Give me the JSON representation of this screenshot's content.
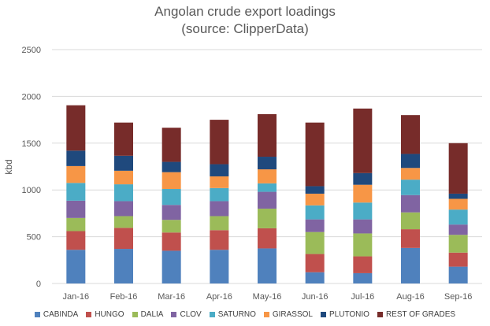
{
  "chart_data": {
    "type": "bar",
    "stacked": true,
    "title": "Angolan crude export loadings",
    "subtitle": "(source: ClipperData)",
    "xlabel": "",
    "ylabel": "kbd",
    "ylim": [
      0,
      2500
    ],
    "yticks": [
      0,
      500,
      1000,
      1500,
      2000,
      2500
    ],
    "grid": true,
    "legend_position": "bottom",
    "categories": [
      "Jan-16",
      "Feb-16",
      "Mar-16",
      "Apr-16",
      "May-16",
      "Jun-16",
      "Jul-16",
      "Aug-16",
      "Sep-16"
    ],
    "series": [
      {
        "name": "CABINDA",
        "color": "#4f81bd",
        "values": [
          360,
          370,
          350,
          360,
          375,
          120,
          110,
          380,
          180
        ]
      },
      {
        "name": "HUNGO",
        "color": "#c0504d",
        "values": [
          200,
          225,
          195,
          210,
          215,
          195,
          180,
          200,
          150
        ]
      },
      {
        "name": "DALIA",
        "color": "#9bbb59",
        "values": [
          140,
          125,
          135,
          150,
          210,
          235,
          245,
          180,
          190
        ]
      },
      {
        "name": "CLOV",
        "color": "#8064a2",
        "values": [
          185,
          160,
          160,
          160,
          180,
          135,
          150,
          185,
          110
        ]
      },
      {
        "name": "SATURNO",
        "color": "#4bacc6",
        "values": [
          190,
          180,
          170,
          140,
          90,
          150,
          180,
          165,
          160
        ]
      },
      {
        "name": "GIRASSOL",
        "color": "#f79646",
        "values": [
          180,
          145,
          180,
          125,
          150,
          125,
          190,
          125,
          115
        ]
      },
      {
        "name": "PLUTONIO",
        "color": "#1f497d",
        "values": [
          165,
          160,
          110,
          130,
          135,
          80,
          125,
          150,
          55
        ]
      },
      {
        "name": "REST OF GRADES",
        "color": "#772c2a",
        "values": [
          485,
          355,
          365,
          475,
          455,
          680,
          690,
          415,
          540
        ]
      }
    ]
  }
}
